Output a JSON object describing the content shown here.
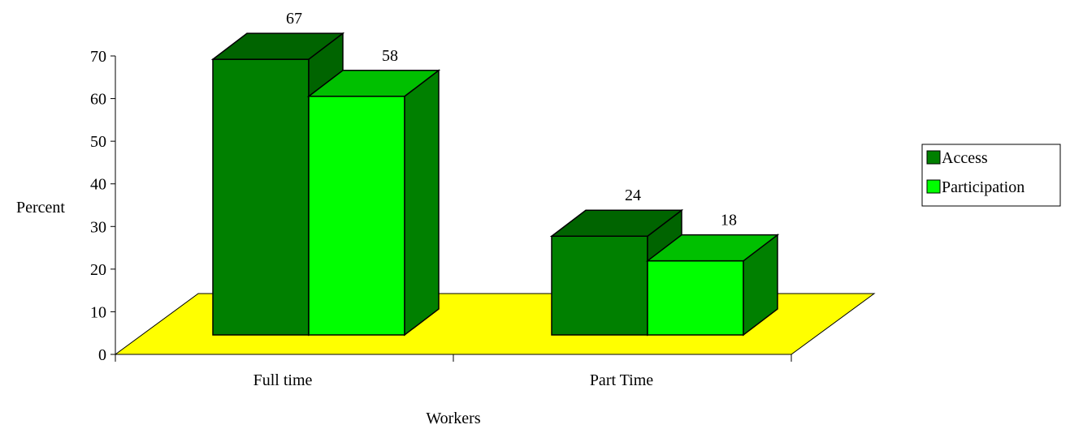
{
  "chart_data": {
    "type": "bar",
    "title": "",
    "categories": [
      "Full time",
      "Part Time"
    ],
    "series": [
      {
        "name": "Access",
        "values": [
          67,
          24
        ],
        "color": "#008000",
        "side_color": "#006400",
        "top_color": "#006400"
      },
      {
        "name": "Participation",
        "values": [
          58,
          18
        ],
        "color": "#00ff00",
        "side_color": "#008000",
        "top_color": "#00c000"
      }
    ],
    "xlabel": "Workers",
    "ylabel": "Percent",
    "ylim": [
      0,
      70
    ],
    "yticks": [
      0,
      10,
      20,
      30,
      40,
      50,
      60,
      70
    ],
    "grid": false,
    "legend_position": "right",
    "floor_color": "#ffff00",
    "three_d": true,
    "data_labels": true
  }
}
